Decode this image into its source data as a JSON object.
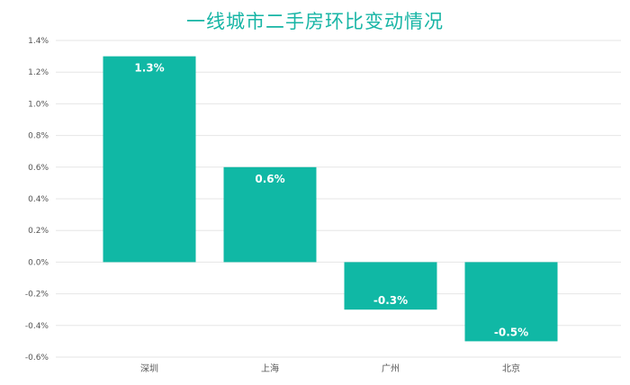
{
  "title": "一线城市二手房环比变动情况",
  "colors": {
    "bar": "#10b8a5",
    "title": "#17b5a5",
    "grid": "#e6e6e6"
  },
  "chart_data": {
    "type": "bar",
    "title": "一线城市二手房环比变动情况",
    "categories": [
      "深圳",
      "上海",
      "广州",
      "北京"
    ],
    "values": [
      1.3,
      0.6,
      -0.3,
      -0.5
    ],
    "data_labels": [
      "1.3%",
      "0.6%",
      "-0.3%",
      "-0.5%"
    ],
    "ylim": [
      -0.6,
      1.4
    ],
    "yticks": [
      -0.6,
      -0.4,
      -0.2,
      0.0,
      0.2,
      0.4,
      0.6,
      0.8,
      1.0,
      1.2,
      1.4
    ],
    "ytick_labels": [
      "-0.6%",
      "-0.4%",
      "-0.2%",
      "0.0%",
      "0.2%",
      "0.4%",
      "0.6%",
      "0.8%",
      "1.0%",
      "1.2%",
      "1.4%"
    ],
    "xlabel": "",
    "ylabel": "",
    "grid": true,
    "legend": "none"
  }
}
